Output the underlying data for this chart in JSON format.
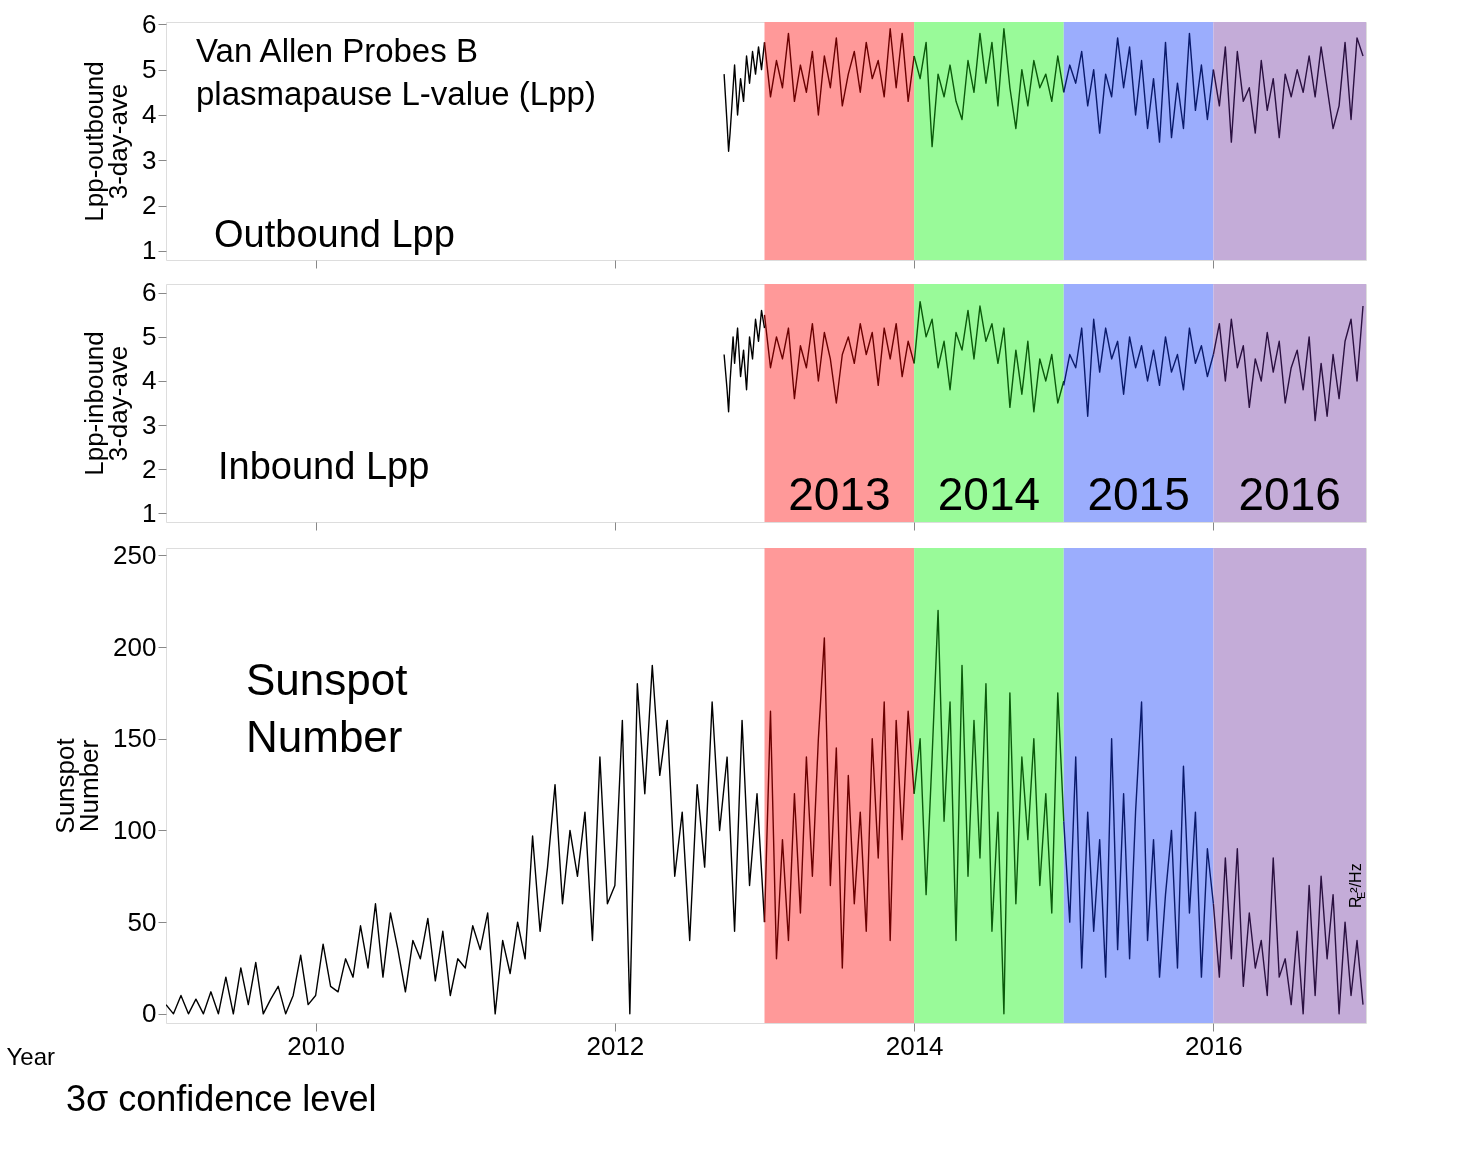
{
  "chart_data": [
    {
      "type": "line",
      "ylabel": "Lpp-outbound\n3-day-ave",
      "xlim": [
        2009,
        2017.02
      ],
      "xticks": [
        2010,
        2012,
        2014,
        2016
      ],
      "ylim": [
        0.8,
        6.05
      ],
      "yticks": [
        1,
        2,
        3,
        4,
        5,
        6
      ],
      "tick_labels": "y",
      "grid": false,
      "annotations": [
        "Van Allen Probes B\nplasmapause L-value (Lpp)",
        "Outbound Lpp"
      ],
      "bands": [
        {
          "axis": "x",
          "from": 2013,
          "to": 2014,
          "color": "#ff9999"
        },
        {
          "axis": "x",
          "from": 2014,
          "to": 2015,
          "color": "#99fa99"
        },
        {
          "axis": "x",
          "from": 2015,
          "to": 2016,
          "color": "#9badfd"
        },
        {
          "axis": "x",
          "from": 2016,
          "to": 2017.02,
          "color": "#c4acd8"
        }
      ],
      "series": [
        {
          "color": "#000000",
          "x": [
            2012.73,
            2012.75,
            2012.76,
            2012.77,
            2012.79,
            2012.8,
            2012.82,
            2012.84,
            2012.86,
            2012.88,
            2012.9,
            2012.92,
            2012.94,
            2012.96,
            2012.98,
            2013.0
          ],
          "values": [
            4.9,
            3.8,
            3.2,
            3.6,
            4.6,
            5.1,
            4.0,
            4.8,
            4.3,
            5.3,
            4.7,
            5.4,
            4.9,
            5.5,
            5.0,
            5.6
          ]
        },
        {
          "color": "#6b0000",
          "x": [
            2013.0,
            2013.04,
            2013.08,
            2013.12,
            2013.16,
            2013.2,
            2013.24,
            2013.28,
            2013.32,
            2013.36,
            2013.4,
            2013.44,
            2013.48,
            2013.52,
            2013.56,
            2013.6,
            2013.64,
            2013.68,
            2013.72,
            2013.76,
            2013.8,
            2013.84,
            2013.88,
            2013.92,
            2013.96,
            2014.0
          ],
          "values": [
            5.6,
            4.4,
            5.2,
            4.6,
            5.8,
            4.3,
            5.1,
            4.5,
            5.4,
            4.0,
            5.3,
            4.6,
            5.7,
            4.2,
            4.9,
            5.4,
            4.5,
            5.6,
            4.8,
            5.2,
            4.4,
            5.9,
            4.6,
            5.8,
            4.3,
            5.3
          ]
        },
        {
          "color": "#0a5a0a",
          "x": [
            2014.0,
            2014.04,
            2014.08,
            2014.12,
            2014.16,
            2014.2,
            2014.24,
            2014.28,
            2014.32,
            2014.36,
            2014.4,
            2014.44,
            2014.48,
            2014.52,
            2014.56,
            2014.6,
            2014.64,
            2014.68,
            2014.72,
            2014.76,
            2014.8,
            2014.84,
            2014.88,
            2014.92,
            2014.96,
            2015.0
          ],
          "values": [
            5.3,
            4.8,
            5.6,
            3.3,
            4.9,
            4.4,
            5.1,
            4.3,
            3.9,
            5.2,
            4.5,
            5.8,
            4.7,
            5.6,
            4.2,
            5.9,
            4.6,
            3.7,
            5.0,
            4.2,
            5.2,
            4.6,
            4.9,
            4.3,
            5.3,
            4.5
          ]
        },
        {
          "color": "#0a1a6b",
          "x": [
            2015.0,
            2015.04,
            2015.08,
            2015.12,
            2015.16,
            2015.2,
            2015.24,
            2015.28,
            2015.32,
            2015.36,
            2015.4,
            2015.44,
            2015.48,
            2015.52,
            2015.56,
            2015.6,
            2015.64,
            2015.68,
            2015.72,
            2015.76,
            2015.8,
            2015.84,
            2015.88,
            2015.92,
            2015.96,
            2016.0
          ],
          "values": [
            4.5,
            5.1,
            4.7,
            5.4,
            4.2,
            5.0,
            3.6,
            4.9,
            4.4,
            5.7,
            4.6,
            5.5,
            4.0,
            5.2,
            3.7,
            4.8,
            3.4,
            5.6,
            3.5,
            4.7,
            3.7,
            5.8,
            4.1,
            5.1,
            3.9,
            5.0
          ]
        },
        {
          "color": "#2a1040",
          "x": [
            2016.0,
            2016.04,
            2016.08,
            2016.12,
            2016.16,
            2016.2,
            2016.24,
            2016.28,
            2016.32,
            2016.36,
            2016.4,
            2016.44,
            2016.48,
            2016.52,
            2016.56,
            2016.6,
            2016.64,
            2016.68,
            2016.72,
            2016.76,
            2016.8,
            2016.84,
            2016.88,
            2016.92,
            2016.96,
            2017.0
          ],
          "values": [
            5.0,
            4.2,
            5.5,
            3.4,
            5.4,
            4.3,
            4.6,
            3.6,
            5.2,
            4.1,
            4.8,
            3.5,
            4.9,
            4.4,
            5.0,
            4.5,
            5.3,
            4.4,
            5.5,
            4.6,
            3.7,
            4.2,
            5.6,
            3.9,
            5.7,
            5.3
          ]
        }
      ]
    },
    {
      "type": "line",
      "ylabel": "Lpp-inbound\n3-day-ave",
      "xlim": [
        2009,
        2017.02
      ],
      "xticks": [
        2010,
        2012,
        2014,
        2016
      ],
      "ylim": [
        0.8,
        6.2
      ],
      "yticks": [
        1,
        2,
        3,
        4,
        5,
        6
      ],
      "tick_labels": "y",
      "grid": false,
      "annotations": [
        "Inbound Lpp"
      ],
      "bands": [
        {
          "axis": "x",
          "from": 2013,
          "to": 2014,
          "color": "#ff9999",
          "label": "2013"
        },
        {
          "axis": "x",
          "from": 2014,
          "to": 2015,
          "color": "#99fa99",
          "label": "2014"
        },
        {
          "axis": "x",
          "from": 2015,
          "to": 2016,
          "color": "#9badfd",
          "label": "2015"
        },
        {
          "axis": "x",
          "from": 2016,
          "to": 2017.02,
          "color": "#c4acd8",
          "label": "2016"
        }
      ],
      "series": [
        {
          "color": "#000000",
          "x": [
            2012.73,
            2012.75,
            2012.76,
            2012.77,
            2012.79,
            2012.8,
            2012.82,
            2012.84,
            2012.86,
            2012.88,
            2012.9,
            2012.92,
            2012.94,
            2012.96,
            2012.98,
            2013.0
          ],
          "values": [
            4.6,
            3.8,
            3.3,
            4.0,
            5.0,
            4.4,
            5.2,
            4.1,
            4.7,
            3.8,
            5.0,
            4.5,
            5.4,
            4.9,
            5.6,
            5.2
          ]
        },
        {
          "color": "#6b0000",
          "x": [
            2013.0,
            2013.04,
            2013.08,
            2013.12,
            2013.16,
            2013.2,
            2013.24,
            2013.28,
            2013.32,
            2013.36,
            2013.4,
            2013.44,
            2013.48,
            2013.52,
            2013.56,
            2013.6,
            2013.64,
            2013.68,
            2013.72,
            2013.76,
            2013.8,
            2013.84,
            2013.88,
            2013.92,
            2013.96,
            2014.0
          ],
          "values": [
            5.5,
            4.3,
            5.0,
            4.5,
            5.2,
            3.6,
            4.8,
            4.3,
            5.3,
            4.0,
            5.1,
            4.5,
            3.5,
            4.6,
            5.0,
            4.4,
            5.3,
            4.6,
            5.1,
            3.9,
            5.2,
            4.5,
            5.3,
            4.1,
            4.9,
            4.4
          ]
        },
        {
          "color": "#0a5a0a",
          "x": [
            2014.0,
            2014.04,
            2014.08,
            2014.12,
            2014.16,
            2014.2,
            2014.24,
            2014.28,
            2014.32,
            2014.36,
            2014.4,
            2014.44,
            2014.48,
            2014.52,
            2014.56,
            2014.6,
            2014.64,
            2014.68,
            2014.72,
            2014.76,
            2014.8,
            2014.84,
            2014.88,
            2014.92,
            2014.96,
            2015.0
          ],
          "values": [
            4.4,
            5.8,
            5.0,
            5.4,
            4.3,
            4.9,
            3.8,
            5.1,
            4.7,
            5.6,
            4.5,
            5.7,
            4.9,
            5.3,
            4.4,
            5.2,
            3.4,
            4.7,
            3.7,
            4.9,
            3.3,
            4.5,
            4.0,
            4.6,
            3.5,
            4.0
          ]
        },
        {
          "color": "#0a1a6b",
          "x": [
            2015.0,
            2015.04,
            2015.08,
            2015.12,
            2015.16,
            2015.2,
            2015.24,
            2015.28,
            2015.32,
            2015.36,
            2015.4,
            2015.44,
            2015.48,
            2015.52,
            2015.56,
            2015.6,
            2015.64,
            2015.68,
            2015.72,
            2015.76,
            2015.8,
            2015.84,
            2015.88,
            2015.92,
            2015.96,
            2016.0
          ],
          "values": [
            3.9,
            4.6,
            4.3,
            5.2,
            3.2,
            5.4,
            4.2,
            5.2,
            4.5,
            4.9,
            3.7,
            5.0,
            4.3,
            4.8,
            4.0,
            4.7,
            3.9,
            5.0,
            4.2,
            4.6,
            3.8,
            5.2,
            4.4,
            4.8,
            4.1,
            4.6
          ]
        },
        {
          "color": "#2a1040",
          "x": [
            2016.0,
            2016.04,
            2016.08,
            2016.12,
            2016.16,
            2016.2,
            2016.24,
            2016.28,
            2016.32,
            2016.36,
            2016.4,
            2016.44,
            2016.48,
            2016.52,
            2016.56,
            2016.6,
            2016.64,
            2016.68,
            2016.72,
            2016.76,
            2016.8,
            2016.84,
            2016.88,
            2016.92,
            2016.96,
            2017.0
          ],
          "values": [
            4.6,
            5.3,
            4.0,
            5.4,
            4.3,
            4.8,
            3.4,
            4.5,
            4.0,
            5.1,
            4.2,
            4.9,
            3.5,
            4.3,
            4.7,
            3.8,
            5.0,
            3.1,
            4.4,
            3.2,
            4.6,
            3.6,
            4.9,
            5.4,
            4.0,
            5.7
          ]
        }
      ]
    },
    {
      "type": "line",
      "xlabel": "Year",
      "ylabel": "Sunspot\nNumber",
      "xlim": [
        2009,
        2017.02
      ],
      "xticks": [
        2010,
        2012,
        2014,
        2016
      ],
      "ylim": [
        -5,
        254
      ],
      "yticks": [
        0,
        50,
        100,
        150,
        200,
        250
      ],
      "grid": false,
      "annotations": [
        "Sunspot\nNumber",
        "3σ confidence level",
        "R$_{E}$²/Hz"
      ],
      "bands": [
        {
          "axis": "x",
          "from": 2013,
          "to": 2014,
          "color": "#ff9999"
        },
        {
          "axis": "x",
          "from": 2014,
          "to": 2015,
          "color": "#99fa99"
        },
        {
          "axis": "x",
          "from": 2015,
          "to": 2016,
          "color": "#9badfd"
        },
        {
          "axis": "x",
          "from": 2016,
          "to": 2017.02,
          "color": "#c4acd8"
        }
      ],
      "series": [
        {
          "color": "#000000",
          "x": [
            2009.0,
            2009.05,
            2009.1,
            2009.15,
            2009.2,
            2009.25,
            2009.3,
            2009.35,
            2009.4,
            2009.45,
            2009.5,
            2009.55,
            2009.6,
            2009.65,
            2009.7,
            2009.75,
            2009.8,
            2009.85,
            2009.9,
            2009.95,
            2010.0,
            2010.05,
            2010.1,
            2010.15,
            2010.2,
            2010.25,
            2010.3,
            2010.35,
            2010.4,
            2010.45,
            2010.5,
            2010.55,
            2010.6,
            2010.65,
            2010.7,
            2010.75,
            2010.8,
            2010.85,
            2010.9,
            2010.95,
            2011.0,
            2011.05,
            2011.1,
            2011.15,
            2011.2,
            2011.25,
            2011.3,
            2011.35,
            2011.4,
            2011.45,
            2011.5,
            2011.55,
            2011.6,
            2011.65,
            2011.7,
            2011.75,
            2011.8,
            2011.85,
            2011.9,
            2011.95,
            2012.0,
            2012.05,
            2012.1,
            2012.15,
            2012.2,
            2012.25,
            2012.3,
            2012.35,
            2012.4,
            2012.45,
            2012.5,
            2012.55,
            2012.6,
            2012.65,
            2012.7,
            2012.75,
            2012.8,
            2012.85,
            2012.9,
            2012.95,
            2013.0
          ],
          "values": [
            5,
            0,
            10,
            0,
            8,
            0,
            12,
            0,
            20,
            0,
            25,
            5,
            28,
            0,
            8,
            15,
            0,
            10,
            32,
            5,
            10,
            38,
            15,
            12,
            30,
            20,
            48,
            25,
            60,
            20,
            55,
            35,
            12,
            40,
            30,
            52,
            18,
            45,
            10,
            30,
            25,
            48,
            35,
            55,
            0,
            40,
            22,
            50,
            30,
            97,
            45,
            80,
            125,
            60,
            100,
            75,
            110,
            40,
            140,
            60,
            70,
            160,
            0,
            180,
            120,
            190,
            130,
            160,
            75,
            110,
            40,
            125,
            80,
            170,
            100,
            140,
            45,
            160,
            70,
            120,
            50
          ]
        },
        {
          "color": "#6b0000",
          "x": [
            2013.0,
            2013.04,
            2013.08,
            2013.12,
            2013.16,
            2013.2,
            2013.24,
            2013.28,
            2013.32,
            2013.36,
            2013.4,
            2013.44,
            2013.48,
            2013.52,
            2013.56,
            2013.6,
            2013.64,
            2013.68,
            2013.72,
            2013.76,
            2013.8,
            2013.84,
            2013.88,
            2013.92,
            2013.96,
            2014.0
          ],
          "values": [
            50,
            165,
            30,
            95,
            40,
            120,
            55,
            140,
            75,
            150,
            205,
            70,
            145,
            25,
            130,
            60,
            110,
            45,
            150,
            85,
            170,
            40,
            160,
            95,
            165,
            120
          ]
        },
        {
          "color": "#0a5a0a",
          "x": [
            2014.0,
            2014.04,
            2014.08,
            2014.12,
            2014.16,
            2014.2,
            2014.24,
            2014.28,
            2014.32,
            2014.36,
            2014.4,
            2014.44,
            2014.48,
            2014.52,
            2014.56,
            2014.6,
            2014.64,
            2014.68,
            2014.72,
            2014.76,
            2014.8,
            2014.84,
            2014.88,
            2014.92,
            2014.96,
            2015.0
          ],
          "values": [
            120,
            150,
            65,
            140,
            220,
            105,
            170,
            40,
            190,
            75,
            160,
            85,
            180,
            45,
            110,
            0,
            175,
            60,
            140,
            95,
            150,
            70,
            120,
            55,
            175,
            105
          ]
        },
        {
          "color": "#0a1a6b",
          "x": [
            2015.0,
            2015.04,
            2015.08,
            2015.12,
            2015.16,
            2015.2,
            2015.24,
            2015.28,
            2015.32,
            2015.36,
            2015.4,
            2015.44,
            2015.48,
            2015.52,
            2015.56,
            2015.6,
            2015.64,
            2015.68,
            2015.72,
            2015.76,
            2015.8,
            2015.84,
            2015.88,
            2015.92,
            2015.96,
            2016.0
          ],
          "values": [
            105,
            50,
            140,
            25,
            110,
            45,
            95,
            20,
            150,
            35,
            120,
            30,
            110,
            170,
            40,
            95,
            20,
            65,
            100,
            25,
            135,
            55,
            110,
            20,
            90,
            60
          ]
        },
        {
          "color": "#2a1040",
          "x": [
            2016.0,
            2016.04,
            2016.08,
            2016.12,
            2016.16,
            2016.2,
            2016.24,
            2016.28,
            2016.32,
            2016.36,
            2016.4,
            2016.44,
            2016.48,
            2016.52,
            2016.56,
            2016.6,
            2016.64,
            2016.68,
            2016.72,
            2016.76,
            2016.8,
            2016.84,
            2016.88,
            2016.92,
            2016.96,
            2017.0
          ],
          "values": [
            60,
            20,
            85,
            30,
            90,
            15,
            55,
            25,
            40,
            10,
            85,
            20,
            30,
            5,
            45,
            0,
            70,
            10,
            75,
            30,
            65,
            0,
            50,
            10,
            40,
            5
          ]
        }
      ]
    }
  ]
}
